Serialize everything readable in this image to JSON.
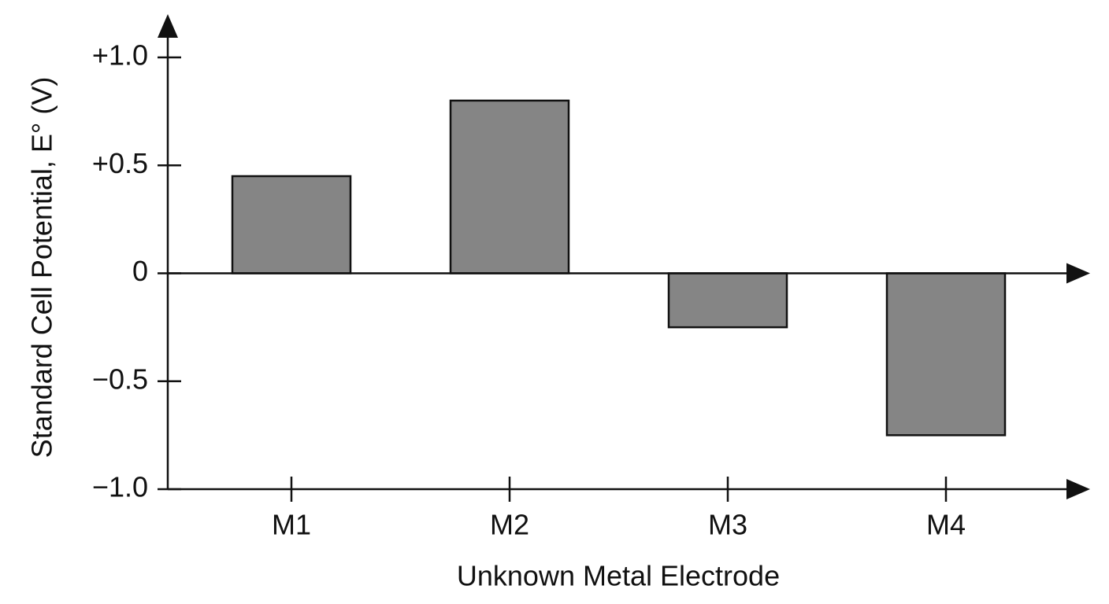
{
  "chart_data": {
    "type": "bar",
    "x_label": "Unknown Metal Electrode",
    "y_label": "Standard Cell Potential, E° (V)",
    "categories": [
      "M1",
      "M2",
      "M3",
      "M4"
    ],
    "values": [
      0.45,
      0.8,
      -0.25,
      -0.75
    ],
    "color": "#858585",
    "ylim": [
      -1.0,
      1.0
    ],
    "yticks": [
      {
        "value": 1.0,
        "label": "+1.0"
      },
      {
        "value": 0.5,
        "label": "+0.5"
      },
      0,
      {
        "value": -0.5,
        "label": "−0.5"
      },
      {
        "value": -1.0,
        "label": "−1.0"
      }
    ],
    "grid": false
  }
}
